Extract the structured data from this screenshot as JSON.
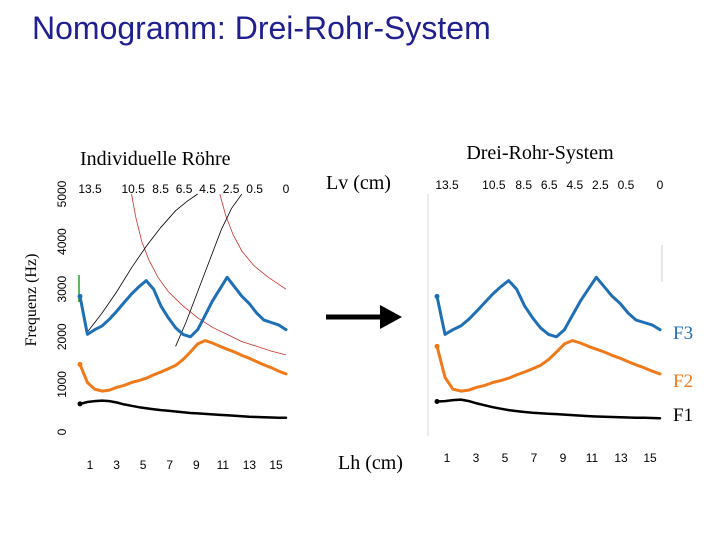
{
  "slide": {
    "title": "Nomogramm: Drei-Rohr-System"
  },
  "middle": {
    "lv_label": "Lv (cm)",
    "lh_label": "Lh (cm)"
  },
  "chart_data": [
    {
      "type": "line",
      "title": "Individuelle Röhre",
      "ylabel": "Frequenz (Hz)",
      "ylim": [
        0,
        5000
      ],
      "y_ticks": [
        "0",
        "1000",
        "2000",
        "3000",
        "4000",
        "5000"
      ],
      "top_ticks": [
        "13.5",
        "10.5",
        "8.5",
        "6.5",
        "4.5",
        "2.5",
        "0.5",
        "0"
      ],
      "bottom_ticks": [
        "1",
        "3",
        "5",
        "7",
        "9",
        "11",
        "13",
        "15"
      ],
      "colors": {
        "F1": "#000000",
        "F2": "#ee7a1c",
        "F3": "#1f6fb4",
        "thin_red": "#c8312b",
        "thin_black": "#000000",
        "marker_green": "#2e9e2e"
      },
      "series": [
        {
          "key": "F3",
          "x": [
            1,
            1.5,
            2,
            2.5,
            3,
            3.5,
            4,
            4.5,
            5,
            5.5,
            6,
            6.5,
            7,
            7.5,
            8,
            8.5,
            9,
            9.5,
            10,
            10.5,
            11,
            11.5,
            12,
            12.5,
            13,
            13.5,
            14,
            14.5,
            15
          ],
          "values": [
            2850,
            2050,
            2150,
            2230,
            2370,
            2540,
            2720,
            2900,
            3050,
            3180,
            3000,
            2650,
            2400,
            2190,
            2050,
            2000,
            2150,
            2450,
            2750,
            3000,
            3250,
            3050,
            2850,
            2700,
            2500,
            2350,
            2300,
            2250,
            2150
          ]
        },
        {
          "key": "F2",
          "x": [
            1,
            1.5,
            2,
            2.5,
            3,
            3.5,
            4,
            4.5,
            5,
            5.5,
            6,
            6.5,
            7,
            7.5,
            8,
            8.5,
            9,
            9.5,
            10,
            10.5,
            11,
            11.5,
            12,
            12.5,
            13,
            13.5,
            14,
            14.5,
            15
          ],
          "values": [
            1420,
            1040,
            900,
            860,
            880,
            940,
            980,
            1040,
            1080,
            1130,
            1200,
            1260,
            1330,
            1400,
            1520,
            1680,
            1850,
            1920,
            1870,
            1800,
            1740,
            1680,
            1610,
            1550,
            1480,
            1410,
            1350,
            1280,
            1220
          ]
        },
        {
          "key": "F1",
          "x": [
            1,
            1.5,
            2,
            2.5,
            3,
            3.5,
            4,
            4.5,
            5,
            5.5,
            6,
            6.5,
            7,
            7.5,
            8,
            8.5,
            9,
            9.5,
            10,
            10.5,
            11,
            11.5,
            12,
            12.5,
            13,
            13.5,
            14,
            14.5,
            15
          ],
          "values": [
            590,
            630,
            650,
            660,
            650,
            620,
            580,
            550,
            520,
            500,
            480,
            460,
            445,
            430,
            415,
            400,
            390,
            380,
            370,
            360,
            350,
            340,
            330,
            320,
            315,
            310,
            305,
            300,
            300
          ]
        }
      ],
      "reference_curves": [
        {
          "color": "thin_red",
          "x": [
            4.5,
            4.8,
            5.2,
            5.7,
            6.3,
            7,
            8,
            9,
            10,
            11,
            12,
            13,
            14,
            15
          ],
          "values": [
            5000,
            4500,
            4000,
            3600,
            3250,
            2950,
            2650,
            2400,
            2200,
            2050,
            1900,
            1800,
            1700,
            1620
          ]
        },
        {
          "color": "thin_red",
          "x": [
            10.5,
            10.9,
            11.4,
            12,
            12.8,
            13.8,
            15
          ],
          "values": [
            5000,
            4550,
            4150,
            3800,
            3500,
            3250,
            3000
          ]
        },
        {
          "color": "thin_black",
          "x": [
            1.5,
            2.5,
            3.5,
            4.5,
            5.5,
            6.5,
            7.5,
            8.3,
            9
          ],
          "values": [
            2100,
            2500,
            2950,
            3450,
            3900,
            4300,
            4650,
            4850,
            5000
          ]
        },
        {
          "color": "thin_black",
          "x": [
            7.5,
            8.2,
            9,
            9.8,
            10.6,
            11.3,
            12
          ],
          "values": [
            1800,
            2300,
            2950,
            3600,
            4250,
            4700,
            5000
          ]
        }
      ]
    },
    {
      "type": "line",
      "title": "Drei-Rohr-System",
      "ylim": [
        0,
        5000
      ],
      "top_ticks": [
        "13.5",
        "10.5",
        "8.5",
        "6.5",
        "4.5",
        "2.5",
        "0.5",
        "0"
      ],
      "bottom_ticks": [
        "1",
        "3",
        "5",
        "7",
        "9",
        "11",
        "13",
        "15"
      ],
      "series": [
        {
          "name": "F3",
          "x": [
            1,
            1.5,
            2,
            2.5,
            3,
            3.5,
            4,
            4.5,
            5,
            5.5,
            6,
            6.5,
            7,
            7.5,
            8,
            8.5,
            9,
            9.5,
            10,
            10.5,
            11,
            11.5,
            12,
            12.5,
            13,
            13.5,
            14,
            14.5,
            15
          ],
          "values": [
            2850,
            2050,
            2150,
            2230,
            2370,
            2540,
            2720,
            2900,
            3050,
            3180,
            3000,
            2650,
            2400,
            2190,
            2050,
            2000,
            2150,
            2450,
            2750,
            3000,
            3250,
            3050,
            2850,
            2700,
            2500,
            2350,
            2300,
            2250,
            2150
          ]
        },
        {
          "name": "F2",
          "x": [
            1,
            1.5,
            2,
            2.5,
            3,
            3.5,
            4,
            4.5,
            5,
            5.5,
            6,
            6.5,
            7,
            7.5,
            8,
            8.5,
            9,
            9.5,
            10,
            10.5,
            11,
            11.5,
            12,
            12.5,
            13,
            13.5,
            14,
            14.5,
            15
          ],
          "values": [
            1800,
            1150,
            900,
            860,
            880,
            940,
            980,
            1040,
            1080,
            1130,
            1200,
            1260,
            1330,
            1400,
            1520,
            1680,
            1850,
            1920,
            1870,
            1800,
            1740,
            1680,
            1610,
            1550,
            1480,
            1410,
            1350,
            1280,
            1220
          ]
        },
        {
          "name": "F1",
          "x": [
            1,
            1.5,
            2,
            2.5,
            3,
            3.5,
            4,
            4.5,
            5,
            5.5,
            6,
            6.5,
            7,
            7.5,
            8,
            8.5,
            9,
            9.5,
            10,
            10.5,
            11,
            11.5,
            12,
            12.5,
            13,
            13.5,
            14,
            14.5,
            15
          ],
          "values": [
            640,
            650,
            670,
            680,
            650,
            600,
            560,
            520,
            490,
            460,
            440,
            420,
            405,
            395,
            385,
            375,
            365,
            355,
            345,
            335,
            325,
            320,
            315,
            310,
            305,
            300,
            300,
            295,
            290
          ]
        }
      ],
      "legend": [
        {
          "label": "F3",
          "color": "#1f6fb4"
        },
        {
          "label": "F2",
          "color": "#ee7a1c"
        },
        {
          "label": "F1",
          "color": "#000000"
        }
      ]
    }
  ]
}
